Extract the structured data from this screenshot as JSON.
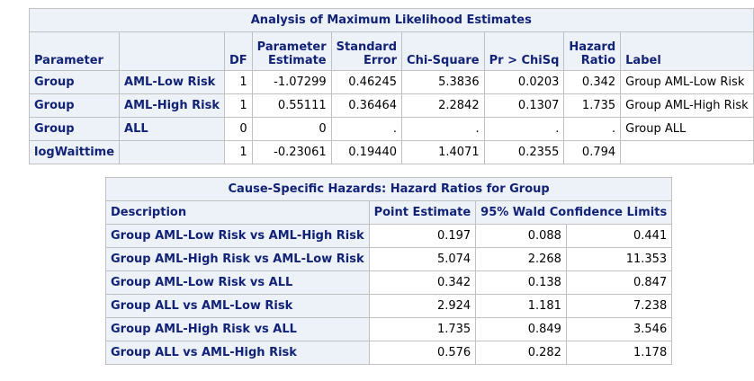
{
  "mle_table": {
    "title": "Analysis of Maximum Likelihood Estimates",
    "headers": {
      "parameter": "Parameter",
      "df": "DF",
      "estimate_l1": "Parameter",
      "estimate_l2": "Estimate",
      "stderr_l1": "Standard",
      "stderr_l2": "Error",
      "chisq": "Chi-Square",
      "p": "Pr > ChiSq",
      "hr_l1": "Hazard",
      "hr_l2": "Ratio",
      "label": "Label"
    },
    "rows": [
      {
        "param": "Group",
        "level": "AML-Low Risk",
        "df": "1",
        "estimate": "-1.07299",
        "stderr": "0.46245",
        "chisq": "5.3836",
        "p": "0.0203",
        "hr": "0.342",
        "label": "Group AML-Low Risk"
      },
      {
        "param": "Group",
        "level": "AML-High Risk",
        "df": "1",
        "estimate": "0.55111",
        "stderr": "0.36464",
        "chisq": "2.2842",
        "p": "0.1307",
        "hr": "1.735",
        "label": "Group AML-High Risk"
      },
      {
        "param": "Group",
        "level": "ALL",
        "df": "0",
        "estimate": "0",
        "stderr": ".",
        "chisq": ".",
        "p": ".",
        "hr": ".",
        "label": "Group ALL"
      },
      {
        "param": "logWaittime",
        "level": "",
        "df": "1",
        "estimate": "-0.23061",
        "stderr": "0.19440",
        "chisq": "1.4071",
        "p": "0.2355",
        "hr": "0.794",
        "label": ""
      }
    ]
  },
  "hr_table": {
    "title": "Cause-Specific Hazards: Hazard Ratios for Group",
    "headers": {
      "description": "Description",
      "point": "Point Estimate",
      "ci": "95% Wald Confidence Limits"
    },
    "rows": [
      {
        "desc": "Group AML-Low Risk vs AML-High Risk",
        "point": "0.197",
        "lower": "0.088",
        "upper": "0.441"
      },
      {
        "desc": "Group AML-High Risk vs AML-Low Risk",
        "point": "5.074",
        "lower": "2.268",
        "upper": "11.353"
      },
      {
        "desc": "Group AML-Low Risk vs ALL",
        "point": "0.342",
        "lower": "0.138",
        "upper": "0.847"
      },
      {
        "desc": "Group ALL vs AML-Low Risk",
        "point": "2.924",
        "lower": "1.181",
        "upper": "7.238"
      },
      {
        "desc": "Group AML-High Risk vs ALL",
        "point": "1.735",
        "lower": "0.849",
        "upper": "3.546"
      },
      {
        "desc": "Group ALL vs AML-High Risk",
        "point": "0.576",
        "lower": "0.282",
        "upper": "1.178"
      }
    ]
  }
}
